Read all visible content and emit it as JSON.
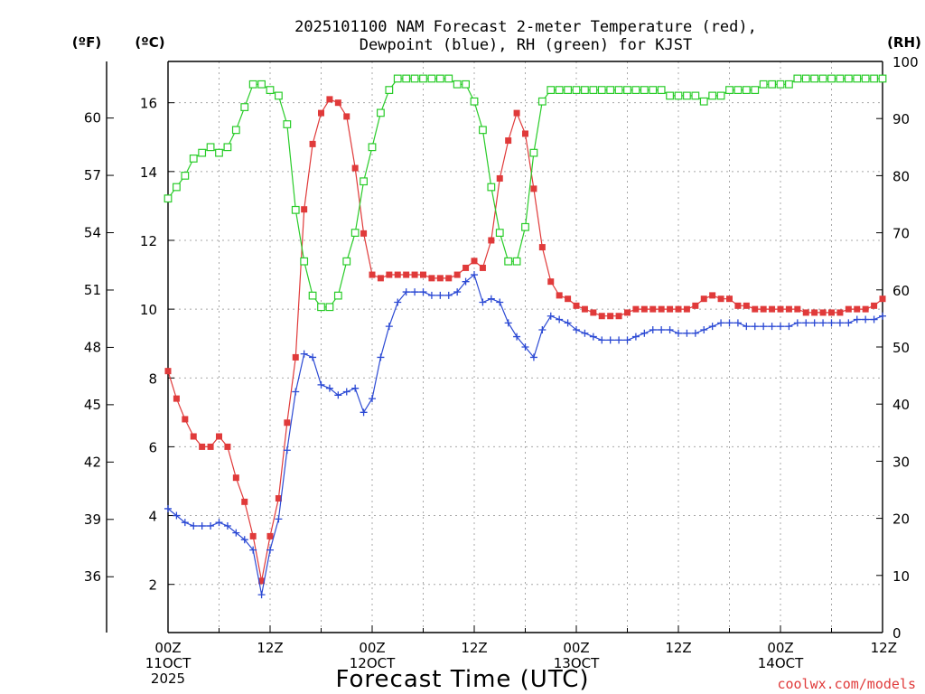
{
  "chart_data": {
    "type": "line",
    "title_lines": [
      "2025101100 NAM Forecast 2-meter Temperature (red),",
      "Dewpoint (blue), RH (green) for KJST"
    ],
    "left_unit_f": "(ºF)",
    "left_unit_c": "(ºC)",
    "right_unit": "(RH)",
    "xlabel": "Forecast Time (UTC)",
    "credit": "coolwx.com/models",
    "hours_range": [
      0,
      84
    ],
    "celsius_range": [
      0.6,
      17.2
    ],
    "rh_range": [
      0,
      100
    ],
    "fahrenheit_ticks": [
      "36",
      "39",
      "42",
      "45",
      "48",
      "51",
      "54",
      "57",
      "60"
    ],
    "celsius_ticks": [
      "2",
      "4",
      "6",
      "8",
      "10",
      "12",
      "14",
      "16"
    ],
    "rh_ticks": [
      "0",
      "10",
      "20",
      "30",
      "40",
      "50",
      "60",
      "70",
      "80",
      "90",
      "100"
    ],
    "x_ticks": [
      {
        "hour": 0,
        "lines": [
          "00Z",
          "11OCT",
          "2025"
        ]
      },
      {
        "hour": 12,
        "lines": [
          "12Z"
        ]
      },
      {
        "hour": 24,
        "lines": [
          "00Z",
          "12OCT"
        ]
      },
      {
        "hour": 36,
        "lines": [
          "12Z"
        ]
      },
      {
        "hour": 48,
        "lines": [
          "00Z",
          "13OCT"
        ]
      },
      {
        "hour": 60,
        "lines": [
          "12Z"
        ]
      },
      {
        "hour": 72,
        "lines": [
          "00Z",
          "14OCT"
        ]
      },
      {
        "hour": 84,
        "lines": [
          "12Z"
        ]
      }
    ],
    "series": [
      {
        "name": "Temperature",
        "axis": "celsius",
        "color": "#e03a3a",
        "marker": "filled-square",
        "values": [
          8.2,
          7.4,
          6.8,
          6.3,
          6.0,
          6.0,
          6.3,
          6.0,
          5.1,
          4.4,
          3.4,
          2.1,
          3.4,
          4.5,
          6.7,
          8.6,
          12.9,
          14.8,
          15.7,
          16.1,
          16.0,
          15.6,
          14.1,
          12.2,
          11.0,
          10.9,
          11.0,
          11.0,
          11.0,
          11.0,
          11.0,
          10.9,
          10.9,
          10.9,
          11.0,
          11.2,
          11.4,
          11.2,
          12.0,
          13.8,
          14.9,
          15.7,
          15.1,
          13.5,
          11.8,
          10.8,
          10.4,
          10.3,
          10.1,
          10.0,
          9.9,
          9.8,
          9.8,
          9.8,
          9.9,
          10.0,
          10.0,
          10.0,
          10.0,
          10.0,
          10.0,
          10.0,
          10.1,
          10.3,
          10.4,
          10.3,
          10.3,
          10.1,
          10.1,
          10.0,
          10.0,
          10.0,
          10.0,
          10.0,
          10.0,
          9.9,
          9.9,
          9.9,
          9.9,
          9.9,
          10.0,
          10.0,
          10.0,
          10.1,
          10.3
        ]
      },
      {
        "name": "Dewpoint",
        "axis": "celsius",
        "color": "#2c4ad4",
        "marker": "plus",
        "values": [
          4.2,
          4.0,
          3.8,
          3.7,
          3.7,
          3.7,
          3.8,
          3.7,
          3.5,
          3.3,
          3.0,
          1.7,
          3.0,
          3.9,
          5.9,
          7.6,
          8.7,
          8.6,
          7.8,
          7.7,
          7.5,
          7.6,
          7.7,
          7.0,
          7.4,
          8.6,
          9.5,
          10.2,
          10.5,
          10.5,
          10.5,
          10.4,
          10.4,
          10.4,
          10.5,
          10.8,
          11.0,
          10.2,
          10.3,
          10.2,
          9.6,
          9.2,
          8.9,
          8.6,
          9.4,
          9.8,
          9.7,
          9.6,
          9.4,
          9.3,
          9.2,
          9.1,
          9.1,
          9.1,
          9.1,
          9.2,
          9.3,
          9.4,
          9.4,
          9.4,
          9.3,
          9.3,
          9.3,
          9.4,
          9.5,
          9.6,
          9.6,
          9.6,
          9.5,
          9.5,
          9.5,
          9.5,
          9.5,
          9.5,
          9.6,
          9.6,
          9.6,
          9.6,
          9.6,
          9.6,
          9.6,
          9.7,
          9.7,
          9.7,
          9.8
        ]
      },
      {
        "name": "RH",
        "axis": "rh",
        "color": "#29cc29",
        "marker": "open-square",
        "values": [
          76,
          78,
          80,
          83,
          84,
          85,
          84,
          85,
          88,
          92,
          96,
          96,
          95,
          94,
          89,
          74,
          65,
          59,
          57,
          57,
          59,
          65,
          70,
          79,
          85,
          91,
          95,
          97,
          97,
          97,
          97,
          97,
          97,
          97,
          96,
          96,
          93,
          88,
          78,
          70,
          65,
          65,
          71,
          84,
          93,
          95,
          95,
          95,
          95,
          95,
          95,
          95,
          95,
          95,
          95,
          95,
          95,
          95,
          95,
          94,
          94,
          94,
          94,
          93,
          94,
          94,
          95,
          95,
          95,
          95,
          96,
          96,
          96,
          96,
          97,
          97,
          97,
          97,
          97,
          97,
          97,
          97,
          97,
          97,
          97
        ]
      }
    ]
  }
}
